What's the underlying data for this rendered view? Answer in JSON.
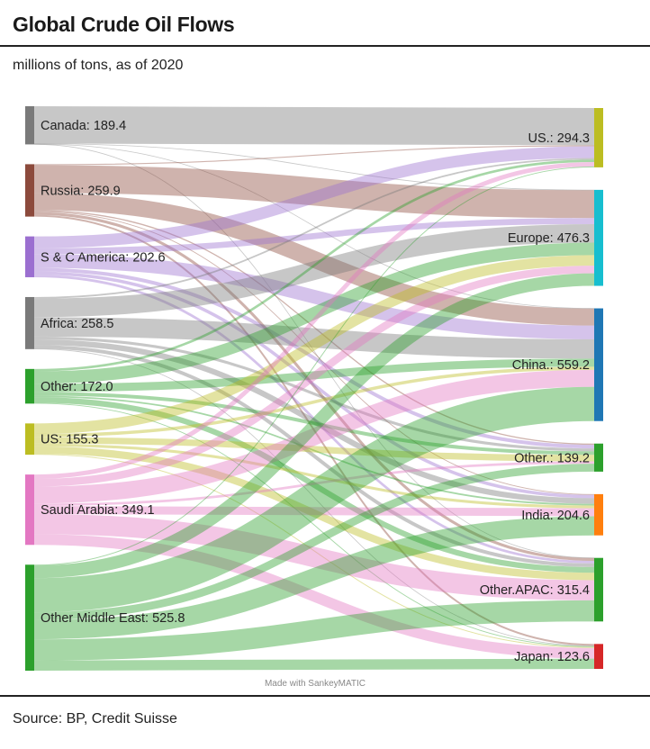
{
  "header": {
    "title": "Global Crude Oil Flows",
    "subtitle": "millions of tons, as of 2020"
  },
  "footer": {
    "source": "Source: BP, Credit Suisse",
    "credit": "Made with SankeyMATIC"
  },
  "chart_data": {
    "type": "sankey",
    "title": "Global Crude Oil Flows",
    "subtitle": "millions of tons, as of 2020",
    "units": "millions of tons",
    "sources": [
      {
        "name": "Canada",
        "value": 189.4,
        "label": "Canada: 189.4",
        "color": "#7a7a7a"
      },
      {
        "name": "Russia",
        "value": 259.9,
        "label": "Russia: 259.9",
        "color": "#8c4a3c"
      },
      {
        "name": "S & C America",
        "value": 202.6,
        "label": "S & C America: 202.6",
        "color": "#9b6fd0"
      },
      {
        "name": "Africa",
        "value": 258.5,
        "label": "Africa: 258.5",
        "color": "#7a7a7a"
      },
      {
        "name": "Other",
        "value": 172.0,
        "label": "Other: 172.0",
        "color": "#2ca02c"
      },
      {
        "name": "US",
        "value": 155.3,
        "label": "US: 155.3",
        "color": "#bcbd22"
      },
      {
        "name": "Saudi Arabia",
        "value": 349.1,
        "label": "Saudi Arabia: 349.1",
        "color": "#e377c2"
      },
      {
        "name": "Other Middle East",
        "value": 525.8,
        "label": "Other Middle East: 525.8",
        "color": "#2ca02c"
      }
    ],
    "targets": [
      {
        "name": "US.",
        "value": 294.3,
        "label": "US.: 294.3",
        "color": "#bcbd22"
      },
      {
        "name": "Europe",
        "value": 476.3,
        "label": "Europe: 476.3",
        "color": "#17becf"
      },
      {
        "name": "China.",
        "value": 559.2,
        "label": "China.: 559.2",
        "color": "#1f77b4"
      },
      {
        "name": "Other.",
        "value": 139.2,
        "label": "Other.: 139.2",
        "color": "#2ca02c"
      },
      {
        "name": "India",
        "value": 204.6,
        "label": "India: 204.6",
        "color": "#ff7f0e"
      },
      {
        "name": "Other.APAC",
        "value": 315.4,
        "label": "Other.APAC: 315.4",
        "color": "#2ca02c"
      },
      {
        "name": "Japan",
        "value": 123.6,
        "label": "Japan: 123.6",
        "color": "#d62728"
      }
    ],
    "flows": [
      {
        "from": "Canada",
        "to": "US.",
        "value": 185
      },
      {
        "from": "Canada",
        "to": "Europe",
        "value": 2
      },
      {
        "from": "Canada",
        "to": "China.",
        "value": 1.4
      },
      {
        "from": "Canada",
        "to": "Other.APAC",
        "value": 1
      },
      {
        "from": "Russia",
        "to": "US.",
        "value": 5
      },
      {
        "from": "Russia",
        "to": "Europe",
        "value": 138
      },
      {
        "from": "Russia",
        "to": "China.",
        "value": 84
      },
      {
        "from": "Russia",
        "to": "Other.",
        "value": 6
      },
      {
        "from": "Russia",
        "to": "India",
        "value": 4
      },
      {
        "from": "Russia",
        "to": "Other.APAC",
        "value": 14
      },
      {
        "from": "Russia",
        "to": "Japan",
        "value": 8.9
      },
      {
        "from": "S & C America",
        "to": "US.",
        "value": 58
      },
      {
        "from": "S & C America",
        "to": "Europe",
        "value": 30
      },
      {
        "from": "S & C America",
        "to": "China.",
        "value": 68
      },
      {
        "from": "S & C America",
        "to": "Other.",
        "value": 18
      },
      {
        "from": "S & C America",
        "to": "India",
        "value": 16
      },
      {
        "from": "S & C America",
        "to": "Other.APAC",
        "value": 12.6
      },
      {
        "from": "Africa",
        "to": "US.",
        "value": 8
      },
      {
        "from": "Africa",
        "to": "Europe",
        "value": 92
      },
      {
        "from": "Africa",
        "to": "China.",
        "value": 96
      },
      {
        "from": "Africa",
        "to": "Other.",
        "value": 14
      },
      {
        "from": "Africa",
        "to": "India",
        "value": 28
      },
      {
        "from": "Africa",
        "to": "Other.APAC",
        "value": 18
      },
      {
        "from": "Africa",
        "to": "Japan",
        "value": 2.5
      },
      {
        "from": "Other",
        "to": "US.",
        "value": 12
      },
      {
        "from": "Other",
        "to": "Europe",
        "value": 62
      },
      {
        "from": "Other",
        "to": "China.",
        "value": 40
      },
      {
        "from": "Other",
        "to": "Other.",
        "value": 18
      },
      {
        "from": "Other",
        "to": "India",
        "value": 8
      },
      {
        "from": "Other",
        "to": "Other.APAC",
        "value": 28
      },
      {
        "from": "Other",
        "to": "Japan",
        "value": 4
      },
      {
        "from": "US",
        "to": "Europe",
        "value": 52
      },
      {
        "from": "US",
        "to": "China.",
        "value": 16
      },
      {
        "from": "US",
        "to": "Other.",
        "value": 32
      },
      {
        "from": "US",
        "to": "India",
        "value": 14
      },
      {
        "from": "US",
        "to": "Other.APAC",
        "value": 37
      },
      {
        "from": "US",
        "to": "Japan",
        "value": 4.3
      },
      {
        "from": "Saudi Arabia",
        "to": "US.",
        "value": 22
      },
      {
        "from": "Saudi Arabia",
        "to": "Europe",
        "value": 38
      },
      {
        "from": "Saudi Arabia",
        "to": "China.",
        "value": 84
      },
      {
        "from": "Saudi Arabia",
        "to": "Other.",
        "value": 12
      },
      {
        "from": "Saudi Arabia",
        "to": "India",
        "value": 40
      },
      {
        "from": "Saudi Arabia",
        "to": "Other.APAC",
        "value": 100
      },
      {
        "from": "Saudi Arabia",
        "to": "Japan",
        "value": 53.1
      },
      {
        "from": "Other Middle East",
        "to": "US.",
        "value": 4.3
      },
      {
        "from": "Other Middle East",
        "to": "Europe",
        "value": 62.3
      },
      {
        "from": "Other Middle East",
        "to": "China.",
        "value": 169.8
      },
      {
        "from": "Other Middle East",
        "to": "Other.",
        "value": 39.2
      },
      {
        "from": "Other Middle East",
        "to": "India",
        "value": 94.6
      },
      {
        "from": "Other Middle East",
        "to": "Other.APAC",
        "value": 104.8
      },
      {
        "from": "Other Middle East",
        "to": "Japan",
        "value": 50.8
      }
    ]
  }
}
